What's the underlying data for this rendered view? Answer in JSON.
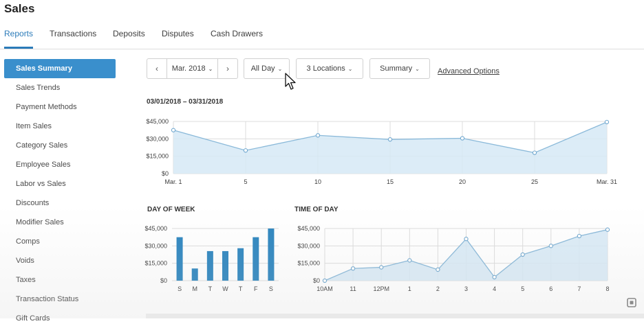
{
  "header": {
    "title": "Sales"
  },
  "tabs": [
    {
      "label": "Reports"
    },
    {
      "label": "Transactions"
    },
    {
      "label": "Deposits"
    },
    {
      "label": "Disputes"
    },
    {
      "label": "Cash Drawers"
    }
  ],
  "sidebar": {
    "items": [
      {
        "label": "Sales Summary"
      },
      {
        "label": "Sales Trends"
      },
      {
        "label": "Payment Methods"
      },
      {
        "label": "Item Sales"
      },
      {
        "label": "Category Sales"
      },
      {
        "label": "Employee Sales"
      },
      {
        "label": "Labor vs Sales"
      },
      {
        "label": "Discounts"
      },
      {
        "label": "Modifier Sales"
      },
      {
        "label": "Comps"
      },
      {
        "label": "Voids"
      },
      {
        "label": "Taxes"
      },
      {
        "label": "Transaction Status"
      },
      {
        "label": "Gift Cards"
      }
    ]
  },
  "filters": {
    "prev": "‹",
    "month": "Mar. 2018",
    "next": "›",
    "time": "All Day",
    "locations": "3 Locations",
    "view": "Summary",
    "advanced": "Advanced Options",
    "caret": "⌄"
  },
  "date_range": "03/01/2018 – 03/31/2018",
  "colors": {
    "accent": "#2b7bb9",
    "bar": "#2e86bf",
    "area_fill": "#d6e9f6",
    "line": "#8ab9d9"
  },
  "chart_data": [
    {
      "type": "area",
      "title": "",
      "x": [
        "Mar. 1",
        "5",
        "10",
        "15",
        "20",
        "25",
        "Mar. 31"
      ],
      "y": [
        37500,
        20000,
        33000,
        29500,
        30500,
        18000,
        44500
      ],
      "ytick_labels": [
        "$45,000",
        "$30,000",
        "$15,000",
        "$0"
      ],
      "ylim": [
        0,
        45000
      ],
      "grid": true
    },
    {
      "type": "bar",
      "title": "DAY OF WEEK",
      "categories": [
        "S",
        "M",
        "T",
        "W",
        "T",
        "F",
        "S"
      ],
      "values": [
        37500,
        10500,
        25500,
        25500,
        28000,
        37500,
        45000
      ],
      "ytick_labels": [
        "$45,000",
        "$30,000",
        "$15,000",
        "$0"
      ],
      "ylim": [
        0,
        45000
      ],
      "grid": true
    },
    {
      "type": "area",
      "title": "TIME OF DAY",
      "x": [
        "10AM",
        "11",
        "12PM",
        "1",
        "2",
        "3",
        "4",
        "5",
        "6",
        "7",
        "8"
      ],
      "y": [
        0,
        10500,
        11500,
        17500,
        9500,
        36000,
        3000,
        22500,
        30000,
        38500,
        44000
      ],
      "ytick_labels": [
        "$45,000",
        "$30,000",
        "$15,000",
        "$0"
      ],
      "ylim": [
        0,
        45000
      ],
      "grid": true
    }
  ]
}
